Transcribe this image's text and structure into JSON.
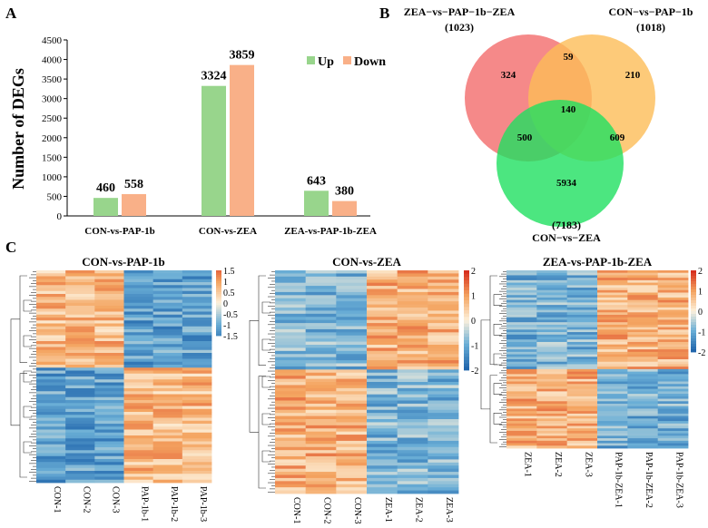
{
  "panels": {
    "a_label": "A",
    "b_label": "B",
    "c_label": "C"
  },
  "colors": {
    "up": "#98d58c",
    "down": "#f9b088",
    "venn_zea_pap": "#f26b6b",
    "venn_con_pap": "#fdbd58",
    "venn_con_zea": "#1fe060",
    "heat_high": "#d7301f",
    "heat_mid_high": "#f4a460",
    "heat_mid": "#fff5e6",
    "heat_low_mid": "#6aaed6",
    "heat_low": "#2166ac"
  },
  "chart_data": [
    {
      "type": "bar",
      "panel": "A",
      "title": "",
      "xlabel": "",
      "ylabel": "Number of DEGs",
      "ylim": [
        0,
        4500
      ],
      "yticks": [
        "0",
        "500",
        "1000",
        "1500",
        "2000",
        "2500",
        "3000",
        "3500",
        "4000",
        "4500"
      ],
      "ytick_values": [
        0,
        500,
        1000,
        1500,
        2000,
        2500,
        3000,
        3500,
        4000,
        4500
      ],
      "categories": [
        "CON-vs-PAP-1b",
        "CON-vs-ZEA",
        "ZEA-vs-PAP-1b-ZEA"
      ],
      "series": [
        {
          "name": "Up",
          "values": [
            460,
            3324,
            643
          ]
        },
        {
          "name": "Down",
          "values": [
            558,
            3859,
            380
          ]
        }
      ],
      "value_labels": {
        "Up": [
          "460",
          "3324",
          "643"
        ],
        "Down": [
          "558",
          "3859",
          "380"
        ]
      },
      "legend": {
        "position": "top-right",
        "entries": [
          "Up",
          "Down"
        ]
      },
      "grid": false
    },
    {
      "type": "venn",
      "panel": "B",
      "sets": [
        {
          "name": "ZEA−vs−PAP−1b−ZEA",
          "total_label": "(1023)",
          "total": 1023
        },
        {
          "name": "CON−vs−PAP−1b",
          "total_label": "(1018)",
          "total": 1018
        },
        {
          "name": "CON−vs−ZEA",
          "total_label": "(7183)",
          "total": 7183
        }
      ],
      "regions": [
        {
          "sets": [
            "ZEA−vs−PAP−1b−ZEA"
          ],
          "label": "324",
          "value": 324
        },
        {
          "sets": [
            "CON−vs−PAP−1b"
          ],
          "label": "210",
          "value": 210
        },
        {
          "sets": [
            "CON−vs−ZEA"
          ],
          "label": "5934",
          "value": 5934
        },
        {
          "sets": [
            "ZEA−vs−PAP−1b−ZEA",
            "CON−vs−PAP−1b"
          ],
          "label": "59",
          "value": 59
        },
        {
          "sets": [
            "ZEA−vs−PAP−1b−ZEA",
            "CON−vs−ZEA"
          ],
          "label": "500",
          "value": 500
        },
        {
          "sets": [
            "CON−vs−PAP−1b",
            "CON−vs−ZEA"
          ],
          "label": "609",
          "value": 609
        },
        {
          "sets": [
            "ZEA−vs−PAP−1b−ZEA",
            "CON−vs−PAP−1b",
            "CON−vs−ZEA"
          ],
          "label": "140",
          "value": 140
        }
      ]
    },
    {
      "type": "heatmap",
      "panel": "C",
      "title": "CON-vs-PAP-1b",
      "columns": [
        "CON-1",
        "CON-2",
        "CON-3",
        "PAP-1b-1",
        "PAP-1b-2",
        "PAP-1b-3"
      ],
      "colorbar_ticks": [
        "1.5",
        "1",
        "0.5",
        "0",
        "-0.5",
        "-1",
        "-1.5"
      ],
      "colorbar_range": [
        -1.5,
        1.5
      ],
      "blocks": [
        {
          "row_fraction": 0.46,
          "levels": [
            0.7,
            0.7,
            0.7,
            -1.2,
            -1.2,
            -1.2
          ]
        },
        {
          "row_fraction": 0.54,
          "levels": [
            -1.2,
            -1.2,
            -1.2,
            0.7,
            0.7,
            0.7
          ]
        }
      ]
    },
    {
      "type": "heatmap",
      "panel": "C",
      "title": "CON-vs-ZEA",
      "columns": [
        "CON-1",
        "CON-2",
        "CON-3",
        "ZEA-1",
        "ZEA-2",
        "ZEA-3"
      ],
      "colorbar_ticks": [
        "2",
        "1",
        "0",
        "-1",
        "-2"
      ],
      "colorbar_range": [
        -2,
        2
      ],
      "blocks": [
        {
          "row_fraction": 0.45,
          "levels": [
            -0.9,
            -0.9,
            -0.9,
            0.8,
            0.8,
            0.8
          ]
        },
        {
          "row_fraction": 0.55,
          "levels": [
            0.8,
            0.8,
            0.8,
            -0.9,
            -0.9,
            -0.9
          ]
        }
      ]
    },
    {
      "type": "heatmap",
      "panel": "C",
      "title": "ZEA-vs-PAP-1b-ZEA",
      "columns": [
        "ZEA-1",
        "ZEA-2",
        "ZEA-3",
        "PAP-1b-ZEA-1",
        "PAP-1b-ZEA-2",
        "PAP-1b-ZEA-3"
      ],
      "colorbar_ticks": [
        "2",
        "1",
        "0",
        "-1",
        "-2"
      ],
      "colorbar_range": [
        -2,
        2
      ],
      "blocks": [
        {
          "row_fraction": 0.56,
          "levels": [
            -1.0,
            -0.9,
            -0.9,
            0.8,
            0.8,
            0.8
          ]
        },
        {
          "row_fraction": 0.44,
          "levels": [
            0.8,
            0.8,
            0.8,
            -1.0,
            -1.0,
            -1.0
          ]
        }
      ]
    }
  ]
}
